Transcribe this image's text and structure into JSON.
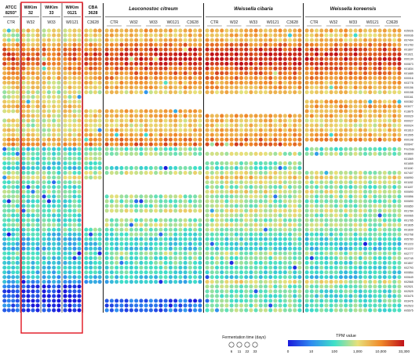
{
  "chart_data": {
    "type": "heatmap",
    "groups": [
      {
        "name": "ATCC 8293ᵀ",
        "lines": [
          "ATCC",
          "8293ᵀ"
        ],
        "strains": [
          "CTR"
        ]
      },
      {
        "name": "WiKim 32",
        "lines": [
          "WiKim",
          "32"
        ],
        "strains": [
          "W32"
        ],
        "highlighted": true
      },
      {
        "name": "WiKim 33",
        "lines": [
          "WiKim",
          "33"
        ],
        "strains": [
          "W33"
        ],
        "highlighted": true
      },
      {
        "name": "WiKim 0121",
        "lines": [
          "WiKim",
          "0121"
        ],
        "strains": [
          "W0121"
        ],
        "highlighted": true
      },
      {
        "name": "CBA 3628",
        "lines": [
          "CBA",
          "3628"
        ],
        "strains": [
          "C3628"
        ]
      },
      {
        "name": "Leuconostoc citreum",
        "lines": [
          "Leuconostoc citreum"
        ],
        "italic": true,
        "strains": [
          "CTR",
          "W32",
          "W33",
          "W0121",
          "C3628"
        ]
      },
      {
        "name": "Weissella cibaria",
        "lines": [
          "Weissella cibaria"
        ],
        "italic": true,
        "strains": [
          "CTR",
          "W32",
          "W33",
          "W0121",
          "C3628"
        ]
      },
      {
        "name": "Weissella koreensis",
        "lines": [
          "Weissella koreensis"
        ],
        "italic": true,
        "strains": [
          "CTR",
          "W32",
          "W33",
          "W0121",
          "C3628"
        ]
      }
    ],
    "gene_ids": [
      "K25026",
      "K00036",
      "K07404",
      "K01783",
      "K01807",
      "K01621",
      "K00134",
      "K00873",
      "K01834",
      "K01689",
      "K00016",
      "K03778",
      "K00156",
      "K00158",
      "K00161",
      "K00382",
      "K03077",
      "K13875",
      "K00029",
      "K00027",
      "K00024",
      "K01610",
      "K01595",
      "K00108",
      "K00647",
      "Fructose",
      "K03800",
      "K01569",
      "K01659",
      "K01160",
      "K07407",
      "K06990",
      "K01182",
      "K01187",
      "K00690",
      "K00856",
      "K00690",
      "K00850",
      "K01784",
      "K00965",
      "K01785",
      "K01835",
      "K01839",
      "K02768",
      "K05780",
      "K01223",
      "K01220",
      "K02777",
      "K02749",
      "K01807",
      "K02793",
      "K00854",
      "K00649",
      "K02565",
      "K02521",
      "K02529",
      "K03475",
      "K03476",
      "K02523",
      "K05575"
    ],
    "fermentation_legend": {
      "title": "Fermentation time (days)",
      "days": [
        6,
        11,
        22,
        33
      ]
    },
    "colorbar": {
      "title": "TPM value",
      "ticks": [
        "0",
        "10",
        "100",
        "1,000",
        "10,000",
        "33,300"
      ],
      "colors": [
        "#1a1adc",
        "#2f8cf0",
        "#3fe0c8",
        "#e8e07a",
        "#f08a2a",
        "#c0121a"
      ]
    },
    "scale": "log",
    "highlight_color": "#e0141e"
  }
}
